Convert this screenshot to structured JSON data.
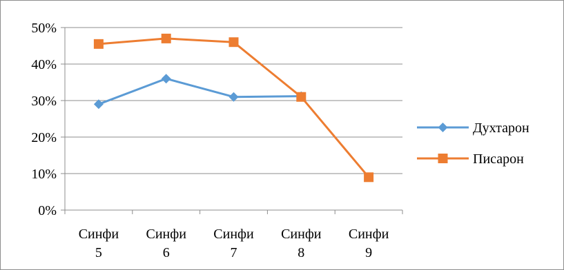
{
  "chart_data": {
    "type": "line",
    "categories": [
      "Синфи 5",
      "Синфи 6",
      "Синфи 7",
      "Синфи 8",
      "Синфи 9"
    ],
    "category_lines": [
      [
        "Синфи",
        "5"
      ],
      [
        "Синфи",
        "6"
      ],
      [
        "Синфи",
        "7"
      ],
      [
        "Синфи",
        "8"
      ],
      [
        "Синфи",
        "9"
      ]
    ],
    "ylim": [
      0,
      0.5
    ],
    "y_ticks": [
      "0%",
      "10%",
      "20%",
      "30%",
      "40%",
      "50%"
    ],
    "grid": true,
    "legend_position": "right",
    "series": [
      {
        "name": "Духтарон",
        "color": "#5b9bd5",
        "marker": "diamond",
        "values": [
          0.29,
          0.36,
          0.31,
          0.312,
          null
        ]
      },
      {
        "name": "Писарон",
        "color": "#ed7d31",
        "marker": "square",
        "values": [
          0.455,
          0.47,
          0.46,
          0.31,
          0.09
        ]
      }
    ]
  }
}
